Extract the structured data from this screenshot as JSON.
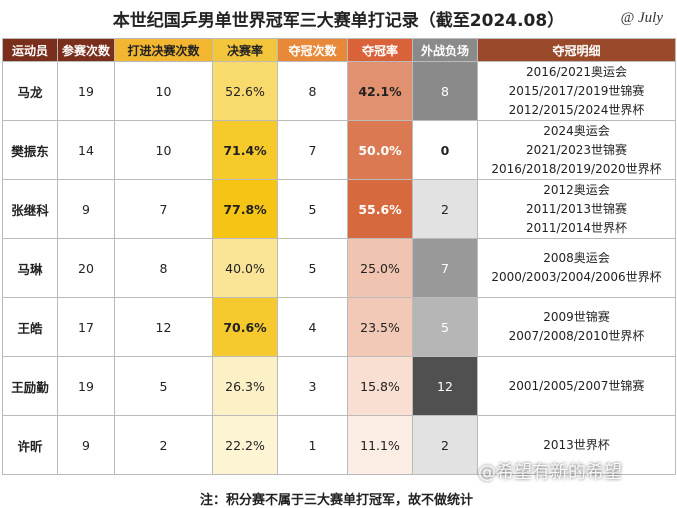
{
  "header": {
    "title": "本世纪国乒男单世界冠军三大赛单打记录（截至2024.08）",
    "signature": "@ July"
  },
  "table": {
    "columns": [
      "运动员",
      "参赛次数",
      "打进决赛次数",
      "决赛率",
      "夺冠次数",
      "夺冠率",
      "外战负场",
      "夺冠明细"
    ],
    "rows": [
      [
        "马龙",
        "19",
        "10",
        "52.6%",
        "8",
        "42.1%",
        "8",
        [
          "2016/2021奥运会",
          "2015/2017/2019世锦赛",
          "2012/2015/2024世界杯"
        ]
      ],
      [
        "樊振东",
        "14",
        "10",
        "71.4%",
        "7",
        "50.0%",
        "0",
        [
          "2024奥运会",
          "2021/2023世锦赛",
          "2016/2018/2019/2020世界杯"
        ]
      ],
      [
        "张继科",
        "9",
        "7",
        "77.8%",
        "5",
        "55.6%",
        "2",
        [
          "2012奥运会",
          "2011/2013世锦赛",
          "2011/2014世界杯"
        ]
      ],
      [
        "马琳",
        "20",
        "8",
        "40.0%",
        "5",
        "25.0%",
        "7",
        [
          "2008奥运会",
          "2000/2003/2004/2006世界杯"
        ]
      ],
      [
        "王皓",
        "17",
        "12",
        "70.6%",
        "4",
        "23.5%",
        "5",
        [
          "2009世锦赛",
          "2007/2008/2010世界杯"
        ]
      ],
      [
        "王励勤",
        "19",
        "5",
        "26.3%",
        "3",
        "15.8%",
        "12",
        [
          "2001/2005/2007世锦赛"
        ]
      ],
      [
        "许昕",
        "9",
        "2",
        "22.2%",
        "1",
        "11.1%",
        "2",
        [
          "2013世界杯"
        ]
      ]
    ]
  },
  "footer": {
    "note": "注：积分赛不属于三大赛单打冠军，故不做统计",
    "watermark": "@希望有新的希望"
  }
}
